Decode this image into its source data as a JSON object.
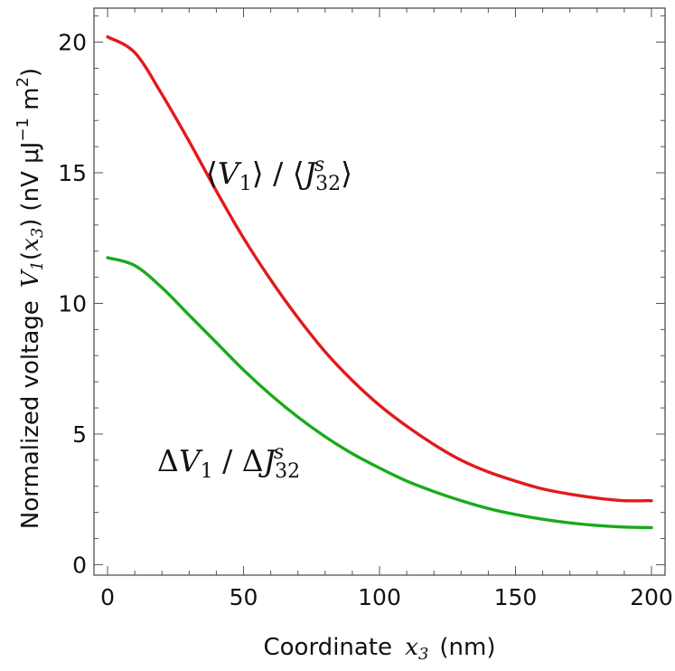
{
  "chart_data": {
    "type": "line",
    "xlabel": {
      "text": "Coordinate",
      "var": "x",
      "var_sub": "3",
      "unit": "(nm)"
    },
    "ylabel": {
      "text": "Normalized voltage",
      "var": "V",
      "var_sub": "1",
      "arg_var": "x",
      "arg_sub": "3",
      "unit_pre": "(nV μJ",
      "unit_exp1": "−1",
      "unit_mid": " m",
      "unit_exp2": "2",
      "unit_post": ")"
    },
    "xlim": [
      -5,
      205
    ],
    "ylim": [
      -0.4,
      21.3
    ],
    "xticks": [
      0,
      50,
      100,
      150,
      200
    ],
    "yticks": [
      0,
      5,
      10,
      15,
      20
    ],
    "xtick_labels": [
      "0",
      "50",
      "100",
      "150",
      "200"
    ],
    "ytick_labels": [
      "0",
      "5",
      "10",
      "15",
      "20"
    ],
    "minor_x_step": 10,
    "minor_y_step": 1,
    "grid": false,
    "x": [
      0,
      10,
      20,
      30,
      40,
      50,
      60,
      70,
      80,
      90,
      100,
      110,
      120,
      130,
      140,
      150,
      160,
      170,
      180,
      190,
      200
    ],
    "series": [
      {
        "color": "#e21a1a",
        "values": [
          20.2,
          19.6,
          18.0,
          16.2,
          14.3,
          12.5,
          10.9,
          9.45,
          8.15,
          7.05,
          6.1,
          5.3,
          4.6,
          4.0,
          3.55,
          3.2,
          2.9,
          2.7,
          2.55,
          2.45,
          2.45
        ],
        "label_parts": {
          "open": "⟨",
          "v": "V",
          "v_sub": "1",
          "close1": "⟩ / ⟨",
          "j": "J",
          "j_sup": "s",
          "j_sub": "32",
          "close2": "⟩"
        }
      },
      {
        "color": "#1aaa1a",
        "values": [
          11.75,
          11.45,
          10.6,
          9.55,
          8.5,
          7.45,
          6.5,
          5.65,
          4.9,
          4.25,
          3.7,
          3.2,
          2.8,
          2.45,
          2.15,
          1.92,
          1.74,
          1.6,
          1.5,
          1.44,
          1.42
        ],
        "label_parts": {
          "d1": "Δ",
          "v": "V",
          "v_sub": "1",
          "slash": " / ",
          "d2": "Δ",
          "j": "J",
          "j_sup": "s",
          "j_sub": "32"
        }
      }
    ]
  }
}
